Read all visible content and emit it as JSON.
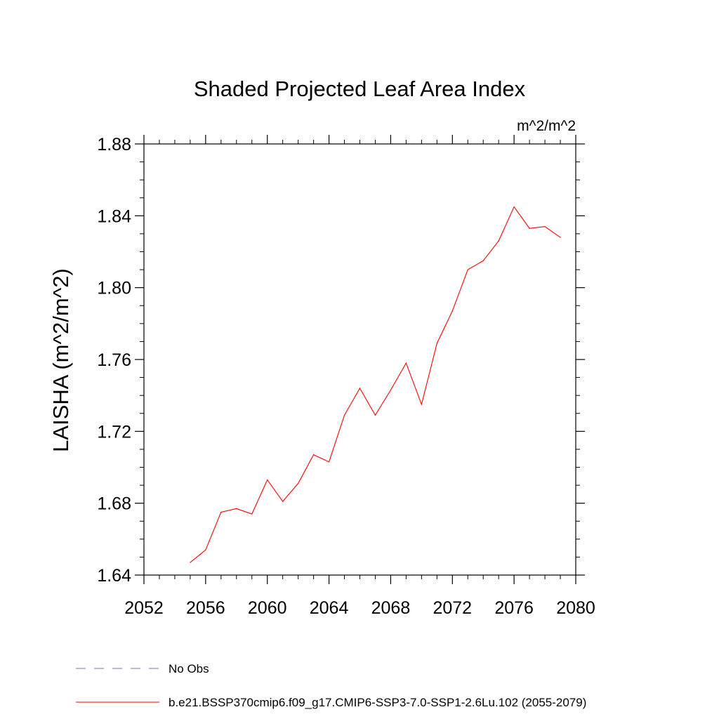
{
  "chart_data": {
    "type": "line",
    "title": "Shaded Projected Leaf Area Index",
    "units_label": "m^2/m^2",
    "ylabel": "LAISHA  (m^2/m^2)",
    "xlabel": "",
    "xlim": [
      2052,
      2080
    ],
    "ylim": [
      1.64,
      1.88
    ],
    "x_ticks": [
      2052,
      2056,
      2060,
      2064,
      2068,
      2072,
      2076,
      2080
    ],
    "y_ticks": [
      1.64,
      1.68,
      1.72,
      1.76,
      1.8,
      1.84,
      1.88
    ],
    "x_tick_labels": [
      "2052",
      "2056",
      "2060",
      "2064",
      "2068",
      "2072",
      "2076",
      "2080"
    ],
    "y_tick_labels": [
      "1.64",
      "1.68",
      "1.72",
      "1.76",
      "1.80",
      "1.84",
      "1.88"
    ],
    "grid": false,
    "legend_position": "bottom-left",
    "series": [
      {
        "name": "No Obs",
        "color": "#7f6fb0",
        "dash": "dashed",
        "x": [],
        "values": []
      },
      {
        "name": "b.e21.BSSP370cmip6.f09_g17.CMIP6-SSP3-7.0-SSP1-2.6Lu.102 (2055-2079)",
        "color": "#ff0000",
        "dash": "solid",
        "x": [
          2055,
          2056,
          2057,
          2058,
          2059,
          2060,
          2061,
          2062,
          2063,
          2064,
          2065,
          2066,
          2067,
          2068,
          2069,
          2070,
          2071,
          2072,
          2073,
          2074,
          2075,
          2076,
          2077,
          2078,
          2079
        ],
        "values": [
          1.647,
          1.654,
          1.675,
          1.677,
          1.674,
          1.693,
          1.681,
          1.691,
          1.707,
          1.703,
          1.729,
          1.744,
          1.729,
          1.743,
          1.758,
          1.735,
          1.769,
          1.787,
          1.81,
          1.815,
          1.826,
          1.845,
          1.833,
          1.834,
          1.828
        ]
      }
    ]
  }
}
